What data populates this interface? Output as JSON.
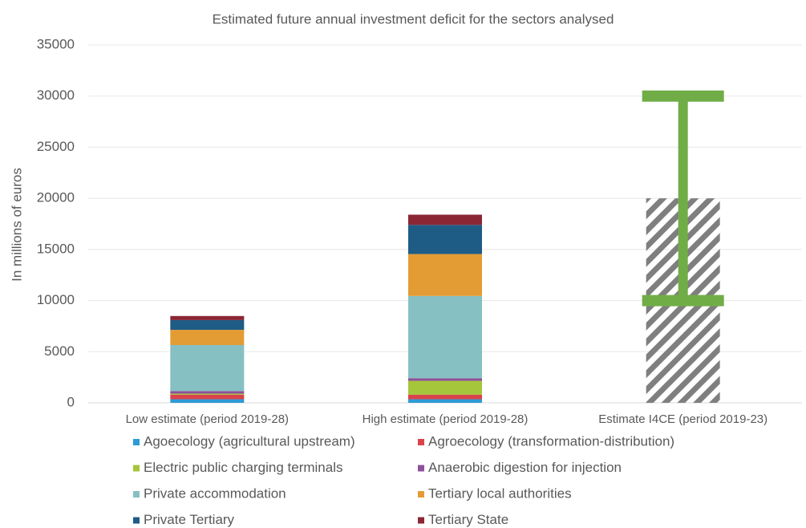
{
  "chart_data": {
    "type": "bar",
    "stacked": true,
    "title": "Estimated future annual investment deficit for the sectors analysed",
    "y_label": "In millions of euros",
    "categories": [
      "Low estimate (period 2019-28)",
      "High estimate (period 2019-28)",
      "Estimate I4CE (period 2019-23)"
    ],
    "series": [
      {
        "name": "Agoecology (agricultural upstream)",
        "color": "#2e9bd6",
        "values": [
          350,
          350,
          null
        ]
      },
      {
        "name": "Agroecology (transformation-distribution)",
        "color": "#d9434b",
        "values": [
          450,
          450,
          null
        ]
      },
      {
        "name": "Electric public charging terminals",
        "color": "#a5c53a",
        "values": [
          100,
          1350,
          null
        ]
      },
      {
        "name": "Anaerobic digestion for injection",
        "color": "#8e5199",
        "values": [
          250,
          250,
          null
        ]
      },
      {
        "name": "Private accommodation",
        "color": "#86c0c2",
        "values": [
          4500,
          8050,
          null
        ]
      },
      {
        "name": "Tertiary local authorities",
        "color": "#e39c34",
        "values": [
          1490,
          4100,
          null
        ]
      },
      {
        "name": "Private Tertiary",
        "color": "#1e5c86",
        "values": [
          950,
          2850,
          null
        ]
      },
      {
        "name": "Tertiary State",
        "color": "#8b2635",
        "values": [
          400,
          1000,
          null
        ]
      }
    ],
    "range_bar": {
      "category": 2,
      "value": 20000,
      "low": 10000,
      "high": 30000,
      "hatch_color": "#7f7f7f",
      "range_color": "#70ad47"
    },
    "ylim": [
      0,
      35000
    ],
    "yticks": [
      0,
      5000,
      10000,
      15000,
      20000,
      25000,
      30000,
      35000
    ],
    "grid": true
  }
}
